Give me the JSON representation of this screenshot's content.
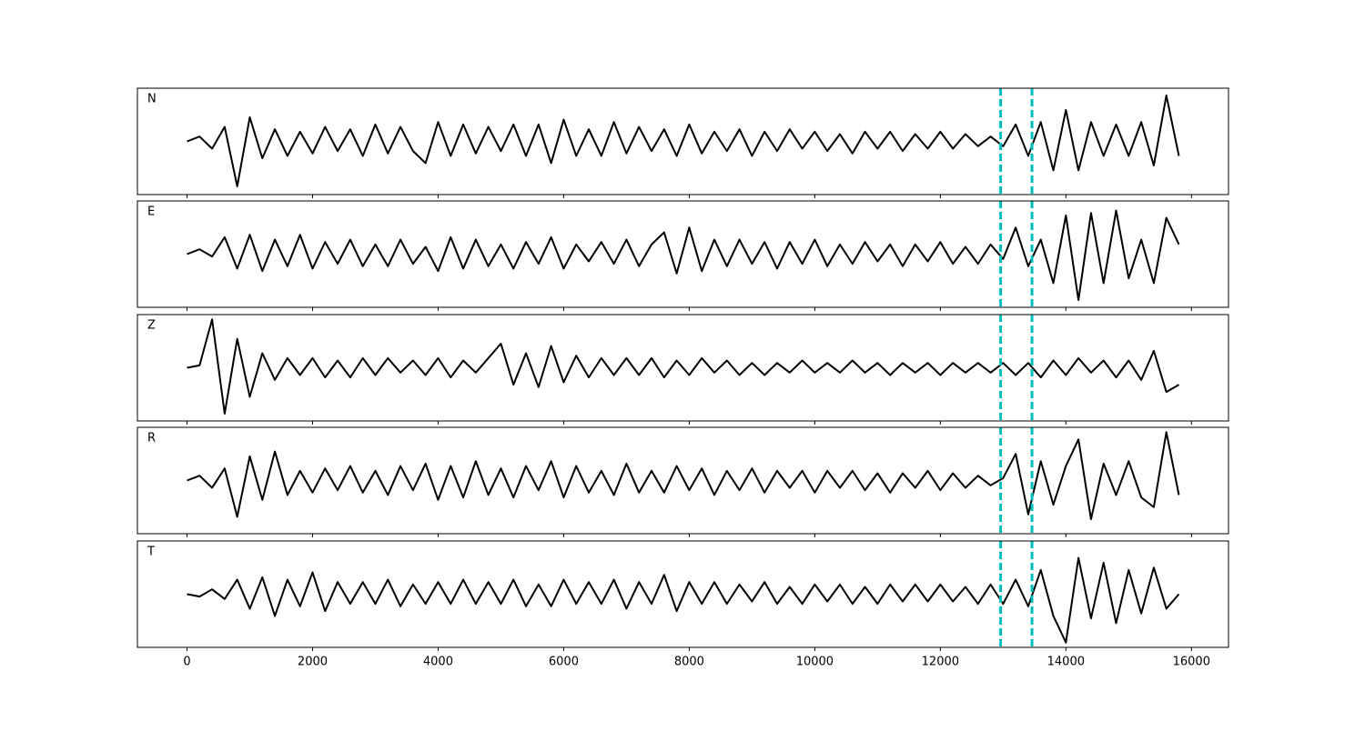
{
  "chart_data": [
    {
      "type": "line",
      "label": "N",
      "color": "#000000",
      "vline_color": "#00bfbf",
      "vlines": [
        12960,
        13460
      ],
      "xlim": [
        -790,
        16590
      ],
      "ylim": [
        -1.1,
        1.1
      ],
      "xticks": [
        0,
        2000,
        4000,
        6000,
        8000,
        10000,
        12000,
        14000,
        16000
      ],
      "x": [
        0,
        200,
        400,
        600,
        800,
        1000,
        1200,
        1400,
        1600,
        1800,
        2000,
        2200,
        2400,
        2600,
        2800,
        3000,
        3200,
        3400,
        3600,
        3800,
        4000,
        4200,
        4400,
        4600,
        4800,
        5000,
        5200,
        5400,
        5600,
        5800,
        6000,
        6200,
        6400,
        6600,
        6800,
        7000,
        7200,
        7400,
        7600,
        7800,
        8000,
        8200,
        8400,
        8600,
        8800,
        9000,
        9200,
        9400,
        9600,
        9800,
        10000,
        10200,
        10400,
        10600,
        10800,
        11000,
        11200,
        11400,
        11600,
        11800,
        12000,
        12200,
        12400,
        12600,
        12800,
        13000,
        13200,
        13400,
        13600,
        13800,
        14000,
        14200,
        14400,
        14600,
        14800,
        15000,
        15200,
        15400,
        15600,
        15800
      ],
      "values": [
        0.0,
        0.1,
        -0.15,
        0.3,
        -0.93,
        0.5,
        -0.35,
        0.25,
        -0.3,
        0.2,
        -0.25,
        0.3,
        -0.2,
        0.25,
        -0.3,
        0.35,
        -0.25,
        0.3,
        -0.2,
        -0.45,
        0.4,
        -0.3,
        0.35,
        -0.25,
        0.3,
        -0.2,
        0.35,
        -0.3,
        0.35,
        -0.45,
        0.45,
        -0.3,
        0.25,
        -0.3,
        0.4,
        -0.25,
        0.3,
        -0.2,
        0.25,
        -0.3,
        0.35,
        -0.25,
        0.2,
        -0.2,
        0.25,
        -0.3,
        0.2,
        -0.2,
        0.25,
        -0.15,
        0.2,
        -0.2,
        0.15,
        -0.25,
        0.2,
        -0.15,
        0.2,
        -0.2,
        0.15,
        -0.15,
        0.2,
        -0.15,
        0.15,
        -0.1,
        0.1,
        -0.1,
        0.35,
        -0.3,
        0.4,
        -0.6,
        0.65,
        -0.6,
        0.4,
        -0.3,
        0.35,
        -0.3,
        0.4,
        -0.5,
        0.95,
        -0.3
      ]
    },
    {
      "type": "line",
      "label": "E",
      "color": "#000000",
      "vline_color": "#00bfbf",
      "vlines": [
        12960,
        13460
      ],
      "xlim": [
        -790,
        16590
      ],
      "ylim": [
        -1.1,
        1.1
      ],
      "xticks": [
        0,
        2000,
        4000,
        6000,
        8000,
        10000,
        12000,
        14000,
        16000
      ],
      "x": [
        0,
        200,
        400,
        600,
        800,
        1000,
        1200,
        1400,
        1600,
        1800,
        2000,
        2200,
        2400,
        2600,
        2800,
        3000,
        3200,
        3400,
        3600,
        3800,
        4000,
        4200,
        4400,
        4600,
        4800,
        5000,
        5200,
        5400,
        5600,
        5800,
        6000,
        6200,
        6400,
        6600,
        6800,
        7000,
        7200,
        7400,
        7600,
        7800,
        8000,
        8200,
        8400,
        8600,
        8800,
        9000,
        9200,
        9400,
        9600,
        9800,
        10000,
        10200,
        10400,
        10600,
        10800,
        11000,
        11200,
        11400,
        11600,
        11800,
        12000,
        12200,
        12400,
        12600,
        12800,
        13000,
        13200,
        13400,
        13600,
        13800,
        14000,
        14200,
        14400,
        14600,
        14800,
        15000,
        15200,
        15400,
        15600,
        15800
      ],
      "values": [
        0.0,
        0.1,
        -0.05,
        0.35,
        -0.3,
        0.4,
        -0.35,
        0.3,
        -0.25,
        0.4,
        -0.3,
        0.25,
        -0.2,
        0.3,
        -0.25,
        0.2,
        -0.25,
        0.3,
        -0.2,
        0.15,
        -0.35,
        0.35,
        -0.3,
        0.3,
        -0.25,
        0.2,
        -0.3,
        0.25,
        -0.2,
        0.35,
        -0.3,
        0.2,
        -0.15,
        0.25,
        -0.2,
        0.3,
        -0.25,
        0.2,
        0.45,
        -0.4,
        0.55,
        -0.35,
        0.3,
        -0.25,
        0.3,
        -0.2,
        0.25,
        -0.3,
        0.25,
        -0.2,
        0.3,
        -0.25,
        0.2,
        -0.2,
        0.25,
        -0.15,
        0.2,
        -0.25,
        0.2,
        -0.15,
        0.25,
        -0.2,
        0.15,
        -0.2,
        0.2,
        -0.1,
        0.55,
        -0.25,
        0.3,
        -0.6,
        0.8,
        -0.95,
        0.85,
        -0.6,
        0.9,
        -0.5,
        0.3,
        -0.6,
        0.75,
        0.2
      ]
    },
    {
      "type": "line",
      "label": "Z",
      "color": "#000000",
      "vline_color": "#00bfbf",
      "vlines": [
        12960,
        13460
      ],
      "xlim": [
        -790,
        16590
      ],
      "ylim": [
        -1.1,
        1.1
      ],
      "xticks": [
        0,
        2000,
        4000,
        6000,
        8000,
        10000,
        12000,
        14000,
        16000
      ],
      "x": [
        0,
        200,
        400,
        600,
        800,
        1000,
        1200,
        1400,
        1600,
        1800,
        2000,
        2200,
        2400,
        2600,
        2800,
        3000,
        3200,
        3400,
        3600,
        3800,
        4000,
        4200,
        4400,
        4600,
        4800,
        5000,
        5200,
        5400,
        5600,
        5800,
        6000,
        6200,
        6400,
        6600,
        6800,
        7000,
        7200,
        7400,
        7600,
        7800,
        8000,
        8200,
        8400,
        8600,
        8800,
        9000,
        9200,
        9400,
        9600,
        9800,
        10000,
        10200,
        10400,
        10600,
        10800,
        11000,
        11200,
        11400,
        11600,
        11800,
        12000,
        12200,
        12400,
        12600,
        12800,
        13000,
        13200,
        13400,
        13600,
        13800,
        14000,
        14200,
        14400,
        14600,
        14800,
        15000,
        15200,
        15400,
        15600,
        15800
      ],
      "values": [
        0.0,
        0.05,
        1.0,
        -0.95,
        0.6,
        -0.6,
        0.3,
        -0.25,
        0.2,
        -0.15,
        0.2,
        -0.2,
        0.15,
        -0.2,
        0.2,
        -0.15,
        0.2,
        -0.1,
        0.15,
        -0.15,
        0.2,
        -0.2,
        0.15,
        -0.1,
        0.2,
        0.5,
        -0.35,
        0.3,
        -0.4,
        0.45,
        -0.3,
        0.25,
        -0.2,
        0.2,
        -0.15,
        0.2,
        -0.15,
        0.2,
        -0.2,
        0.15,
        -0.15,
        0.2,
        -0.1,
        0.15,
        -0.15,
        0.1,
        -0.15,
        0.1,
        -0.1,
        0.15,
        -0.1,
        0.1,
        -0.1,
        0.15,
        -0.1,
        0.1,
        -0.15,
        0.1,
        -0.1,
        0.1,
        -0.15,
        0.1,
        -0.1,
        0.1,
        -0.1,
        0.1,
        -0.15,
        0.1,
        -0.2,
        0.15,
        -0.15,
        0.2,
        -0.1,
        0.15,
        -0.2,
        0.15,
        -0.25,
        0.35,
        -0.5,
        -0.35
      ]
    },
    {
      "type": "line",
      "label": "R",
      "color": "#000000",
      "vline_color": "#00bfbf",
      "vlines": [
        12960,
        13460
      ],
      "xlim": [
        -790,
        16590
      ],
      "ylim": [
        -1.1,
        1.1
      ],
      "xticks": [
        0,
        2000,
        4000,
        6000,
        8000,
        10000,
        12000,
        14000,
        16000
      ],
      "x": [
        0,
        200,
        400,
        600,
        800,
        1000,
        1200,
        1400,
        1600,
        1800,
        2000,
        2200,
        2400,
        2600,
        2800,
        3000,
        3200,
        3400,
        3600,
        3800,
        4000,
        4200,
        4400,
        4600,
        4800,
        5000,
        5200,
        5400,
        5600,
        5800,
        6000,
        6200,
        6400,
        6600,
        6800,
        7000,
        7200,
        7400,
        7600,
        7800,
        8000,
        8200,
        8400,
        8600,
        8800,
        9000,
        9200,
        9400,
        9600,
        9800,
        10000,
        10200,
        10400,
        10600,
        10800,
        11000,
        11200,
        11400,
        11600,
        11800,
        12000,
        12200,
        12400,
        12600,
        12800,
        13000,
        13200,
        13400,
        13600,
        13800,
        14000,
        14200,
        14400,
        14600,
        14800,
        15000,
        15200,
        15400,
        15600,
        15800
      ],
      "values": [
        0.0,
        0.1,
        -0.15,
        0.25,
        -0.75,
        0.5,
        -0.4,
        0.6,
        -0.3,
        0.2,
        -0.25,
        0.25,
        -0.2,
        0.3,
        -0.25,
        0.2,
        -0.3,
        0.3,
        -0.2,
        0.35,
        -0.4,
        0.3,
        -0.35,
        0.4,
        -0.3,
        0.25,
        -0.35,
        0.3,
        -0.2,
        0.4,
        -0.35,
        0.3,
        -0.25,
        0.2,
        -0.3,
        0.35,
        -0.25,
        0.2,
        -0.25,
        0.3,
        -0.2,
        0.25,
        -0.3,
        0.2,
        -0.2,
        0.25,
        -0.25,
        0.2,
        -0.15,
        0.2,
        -0.25,
        0.2,
        -0.15,
        0.2,
        -0.2,
        0.15,
        -0.25,
        0.15,
        -0.15,
        0.2,
        -0.2,
        0.15,
        -0.15,
        0.1,
        -0.1,
        0.05,
        0.55,
        -0.7,
        0.4,
        -0.5,
        0.3,
        0.85,
        -0.8,
        0.35,
        -0.3,
        0.4,
        -0.35,
        -0.55,
        1.0,
        -0.3
      ]
    },
    {
      "type": "line",
      "label": "T",
      "color": "#000000",
      "vline_color": "#00bfbf",
      "vlines": [
        12960,
        13460
      ],
      "xlim": [
        -790,
        16590
      ],
      "ylim": [
        -1.1,
        1.1
      ],
      "xticks": [
        0,
        2000,
        4000,
        6000,
        8000,
        10000,
        12000,
        14000,
        16000
      ],
      "x": [
        0,
        200,
        400,
        600,
        800,
        1000,
        1200,
        1400,
        1600,
        1800,
        2000,
        2200,
        2400,
        2600,
        2800,
        3000,
        3200,
        3400,
        3600,
        3800,
        4000,
        4200,
        4400,
        4600,
        4800,
        5000,
        5200,
        5400,
        5600,
        5800,
        6000,
        6200,
        6400,
        6600,
        6800,
        7000,
        7200,
        7400,
        7600,
        7800,
        8000,
        8200,
        8400,
        8600,
        8800,
        9000,
        9200,
        9400,
        9600,
        9800,
        10000,
        10200,
        10400,
        10600,
        10800,
        11000,
        11200,
        11400,
        11600,
        11800,
        12000,
        12200,
        12400,
        12600,
        12800,
        13000,
        13200,
        13400,
        13600,
        13800,
        14000,
        14200,
        14400,
        14600,
        14800,
        15000,
        15200,
        15400,
        15600,
        15800
      ],
      "values": [
        0.0,
        -0.05,
        0.1,
        -0.1,
        0.3,
        -0.3,
        0.35,
        -0.45,
        0.3,
        -0.25,
        0.45,
        -0.35,
        0.25,
        -0.2,
        0.25,
        -0.2,
        0.3,
        -0.25,
        0.2,
        -0.2,
        0.25,
        -0.2,
        0.3,
        -0.2,
        0.25,
        -0.2,
        0.3,
        -0.25,
        0.2,
        -0.25,
        0.3,
        -0.2,
        0.25,
        -0.2,
        0.3,
        -0.3,
        0.25,
        -0.2,
        0.4,
        -0.35,
        0.25,
        -0.2,
        0.25,
        -0.2,
        0.2,
        -0.15,
        0.25,
        -0.2,
        0.15,
        -0.2,
        0.2,
        -0.15,
        0.2,
        -0.2,
        0.15,
        -0.2,
        0.2,
        -0.15,
        0.2,
        -0.15,
        0.2,
        -0.15,
        0.15,
        -0.2,
        0.2,
        -0.2,
        0.3,
        -0.25,
        0.5,
        -0.45,
        -1.0,
        0.75,
        -0.5,
        0.65,
        -0.6,
        0.5,
        -0.4,
        0.55,
        -0.3,
        0.0
      ]
    }
  ]
}
